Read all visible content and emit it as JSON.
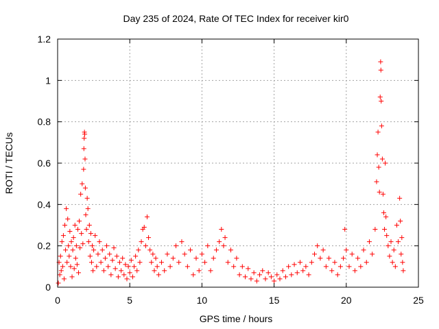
{
  "chart_data": {
    "type": "scatter",
    "title": "Day 235 of 2024, Rate Of TEC Index for receiver kir0",
    "xlabel": "GPS time / hours",
    "ylabel": "ROTI / TECUs",
    "xlim": [
      0,
      25
    ],
    "ylim": [
      0,
      1.2
    ],
    "x_ticks": [
      0,
      5,
      10,
      15,
      20,
      25
    ],
    "x_tick_labels": [
      "0",
      "5",
      "10",
      "15",
      "20",
      "25"
    ],
    "y_ticks": [
      0,
      0.2,
      0.4,
      0.6,
      0.8,
      1.0,
      1.2
    ],
    "y_tick_labels": [
      "0",
      "0.2",
      "0.4",
      "0.6",
      "0.8",
      "1",
      "1.2"
    ],
    "grid": true,
    "marker": "+",
    "color": "#ff0000",
    "series": [
      {
        "points": [
          [
            0.05,
            0.02
          ],
          [
            0.1,
            0.12
          ],
          [
            0.15,
            0.06
          ],
          [
            0.2,
            0.15
          ],
          [
            0.25,
            0.08
          ],
          [
            0.3,
            0.22
          ],
          [
            0.35,
            0.1
          ],
          [
            0.4,
            0.25
          ],
          [
            0.45,
            0.04
          ],
          [
            0.5,
            0.3
          ],
          [
            0.55,
            0.18
          ],
          [
            0.6,
            0.38
          ],
          [
            0.65,
            0.12
          ],
          [
            0.7,
            0.33
          ],
          [
            0.75,
            0.2
          ],
          [
            0.8,
            0.15
          ],
          [
            0.85,
            0.27
          ],
          [
            0.9,
            0.1
          ],
          [
            0.95,
            0.22
          ],
          [
            1.0,
            0.05
          ],
          [
            1.05,
            0.18
          ],
          [
            1.1,
            0.24
          ],
          [
            1.15,
            0.09
          ],
          [
            1.2,
            0.3
          ],
          [
            1.25,
            0.14
          ],
          [
            1.3,
            0.2
          ],
          [
            1.35,
            0.11
          ],
          [
            1.4,
            0.28
          ],
          [
            1.45,
            0.07
          ],
          [
            1.5,
            0.32
          ],
          [
            1.55,
            0.19
          ],
          [
            1.6,
            0.45
          ],
          [
            1.65,
            0.26
          ],
          [
            1.7,
            0.5
          ],
          [
            1.75,
            0.21
          ],
          [
            1.8,
            0.57
          ],
          [
            1.82,
            0.67
          ],
          [
            1.84,
            0.72
          ],
          [
            1.86,
            0.75
          ],
          [
            1.88,
            0.74
          ],
          [
            1.9,
            0.62
          ],
          [
            1.92,
            0.48
          ],
          [
            1.95,
            0.35
          ],
          [
            2.0,
            0.28
          ],
          [
            2.05,
            0.43
          ],
          [
            2.1,
            0.38
          ],
          [
            2.15,
            0.22
          ],
          [
            2.2,
            0.3
          ],
          [
            2.25,
            0.15
          ],
          [
            2.3,
            0.26
          ],
          [
            2.35,
            0.12
          ],
          [
            2.4,
            0.2
          ],
          [
            2.45,
            0.08
          ],
          [
            2.5,
            0.18
          ],
          [
            2.6,
            0.25
          ],
          [
            2.7,
            0.1
          ],
          [
            2.8,
            0.16
          ],
          [
            2.9,
            0.22
          ],
          [
            3.0,
            0.12
          ],
          [
            3.1,
            0.18
          ],
          [
            3.2,
            0.08
          ],
          [
            3.3,
            0.14
          ],
          [
            3.4,
            0.2
          ],
          [
            3.5,
            0.1
          ],
          [
            3.6,
            0.16
          ],
          [
            3.7,
            0.06
          ],
          [
            3.8,
            0.13
          ],
          [
            3.9,
            0.19
          ],
          [
            4.0,
            0.09
          ],
          [
            4.1,
            0.15
          ],
          [
            4.2,
            0.05
          ],
          [
            4.3,
            0.12
          ],
          [
            4.4,
            0.08
          ],
          [
            4.5,
            0.14
          ],
          [
            4.6,
            0.06
          ],
          [
            4.7,
            0.11
          ],
          [
            4.8,
            0.04
          ],
          [
            4.9,
            0.1
          ],
          [
            5.0,
            0.07
          ],
          [
            5.1,
            0.13
          ],
          [
            5.2,
            0.05
          ],
          [
            5.3,
            0.1
          ],
          [
            5.4,
            0.15
          ],
          [
            5.5,
            0.08
          ],
          [
            5.6,
            0.18
          ],
          [
            5.7,
            0.12
          ],
          [
            5.8,
            0.22
          ],
          [
            5.9,
            0.28
          ],
          [
            6.0,
            0.29
          ],
          [
            6.1,
            0.2
          ],
          [
            6.2,
            0.34
          ],
          [
            6.3,
            0.24
          ],
          [
            6.4,
            0.18
          ],
          [
            6.5,
            0.12
          ],
          [
            6.6,
            0.16
          ],
          [
            6.7,
            0.08
          ],
          [
            6.8,
            0.14
          ],
          [
            6.9,
            0.1
          ],
          [
            7.0,
            0.06
          ],
          [
            7.2,
            0.12
          ],
          [
            7.4,
            0.08
          ],
          [
            7.6,
            0.16
          ],
          [
            7.8,
            0.1
          ],
          [
            8.0,
            0.14
          ],
          [
            8.2,
            0.2
          ],
          [
            8.4,
            0.12
          ],
          [
            8.6,
            0.22
          ],
          [
            8.8,
            0.16
          ],
          [
            9.0,
            0.1
          ],
          [
            9.2,
            0.18
          ],
          [
            9.4,
            0.06
          ],
          [
            9.6,
            0.14
          ],
          [
            9.8,
            0.08
          ],
          [
            10.0,
            0.16
          ],
          [
            10.2,
            0.12
          ],
          [
            10.4,
            0.2
          ],
          [
            10.6,
            0.08
          ],
          [
            10.8,
            0.14
          ],
          [
            11.0,
            0.18
          ],
          [
            11.2,
            0.22
          ],
          [
            11.35,
            0.28
          ],
          [
            11.5,
            0.2
          ],
          [
            11.6,
            0.24
          ],
          [
            11.8,
            0.12
          ],
          [
            12.0,
            0.18
          ],
          [
            12.2,
            0.1
          ],
          [
            12.4,
            0.14
          ],
          [
            12.6,
            0.06
          ],
          [
            12.8,
            0.1
          ],
          [
            13.0,
            0.05
          ],
          [
            13.2,
            0.09
          ],
          [
            13.4,
            0.04
          ],
          [
            13.6,
            0.07
          ],
          [
            13.8,
            0.03
          ],
          [
            14.0,
            0.06
          ],
          [
            14.2,
            0.08
          ],
          [
            14.4,
            0.04
          ],
          [
            14.6,
            0.07
          ],
          [
            14.8,
            0.05
          ],
          [
            15.0,
            0.03
          ],
          [
            15.2,
            0.06
          ],
          [
            15.4,
            0.04
          ],
          [
            15.6,
            0.08
          ],
          [
            15.8,
            0.05
          ],
          [
            16.0,
            0.1
          ],
          [
            16.2,
            0.06
          ],
          [
            16.4,
            0.11
          ],
          [
            16.6,
            0.07
          ],
          [
            16.8,
            0.12
          ],
          [
            17.0,
            0.08
          ],
          [
            17.2,
            0.1
          ],
          [
            17.4,
            0.06
          ],
          [
            17.6,
            0.12
          ],
          [
            17.8,
            0.16
          ],
          [
            18.0,
            0.2
          ],
          [
            18.2,
            0.14
          ],
          [
            18.4,
            0.18
          ],
          [
            18.6,
            0.1
          ],
          [
            18.8,
            0.14
          ],
          [
            19.0,
            0.08
          ],
          [
            19.2,
            0.12
          ],
          [
            19.4,
            0.06
          ],
          [
            19.6,
            0.1
          ],
          [
            19.8,
            0.14
          ],
          [
            19.9,
            0.28
          ],
          [
            20.0,
            0.18
          ],
          [
            20.2,
            0.1
          ],
          [
            20.4,
            0.16
          ],
          [
            20.6,
            0.08
          ],
          [
            20.8,
            0.14
          ],
          [
            21.0,
            0.1
          ],
          [
            21.2,
            0.18
          ],
          [
            21.4,
            0.12
          ],
          [
            21.6,
            0.22
          ],
          [
            21.8,
            0.16
          ],
          [
            22.0,
            0.28
          ],
          [
            22.1,
            0.51
          ],
          [
            22.15,
            0.64
          ],
          [
            22.2,
            0.75
          ],
          [
            22.25,
            0.58
          ],
          [
            22.3,
            0.46
          ],
          [
            22.35,
            0.92
          ],
          [
            22.38,
            1.09
          ],
          [
            22.4,
            1.05
          ],
          [
            22.42,
            0.9
          ],
          [
            22.45,
            0.78
          ],
          [
            22.5,
            0.62
          ],
          [
            22.55,
            0.45
          ],
          [
            22.6,
            0.36
          ],
          [
            22.65,
            0.28
          ],
          [
            22.7,
            0.6
          ],
          [
            22.75,
            0.34
          ],
          [
            22.8,
            0.25
          ],
          [
            22.9,
            0.2
          ],
          [
            23.0,
            0.15
          ],
          [
            23.1,
            0.22
          ],
          [
            23.2,
            0.12
          ],
          [
            23.3,
            0.18
          ],
          [
            23.4,
            0.1
          ],
          [
            23.5,
            0.3
          ],
          [
            23.6,
            0.22
          ],
          [
            23.7,
            0.43
          ],
          [
            23.75,
            0.32
          ],
          [
            23.8,
            0.16
          ],
          [
            23.85,
            0.24
          ],
          [
            23.9,
            0.12
          ],
          [
            23.95,
            0.08
          ]
        ]
      }
    ]
  }
}
